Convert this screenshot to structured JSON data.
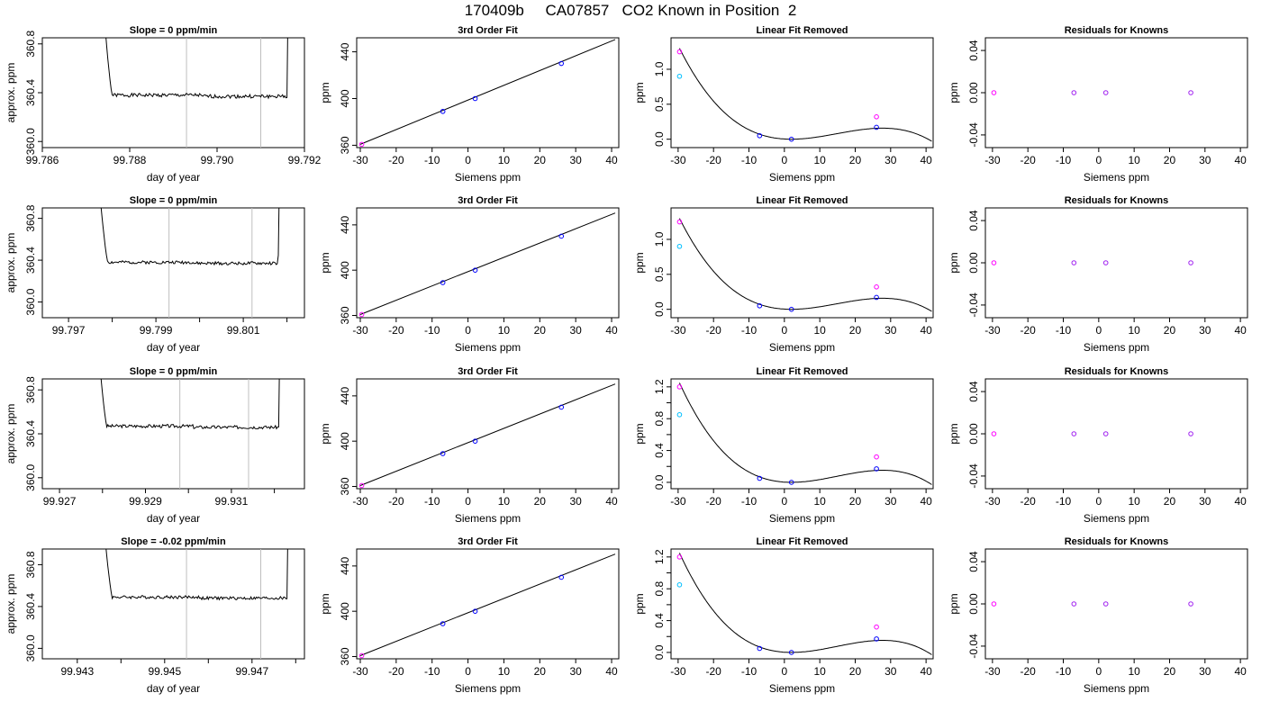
{
  "page_title": "170409b     CA07857   CO2 Known in Position  2",
  "colors": {
    "line": "#000000",
    "gridline": "#bebebe",
    "point_blue": "#0000ff",
    "point_purple": "#a020f0",
    "point_magenta": "#ff00ff",
    "point_cyan": "#00bfff"
  },
  "chart_data": [
    {
      "type": "line",
      "row": 1,
      "title": "Slope =  0  ppm/min",
      "xlabel": "day of year",
      "ylabel": "approx. ppm",
      "xlim": [
        99.786,
        99.792
      ],
      "ylim": [
        359.95,
        360.85
      ],
      "xticks": [
        99.786,
        99.788,
        99.79,
        99.792
      ],
      "xtick_labels": [
        "99.786",
        "99.788",
        "99.790",
        "99.792"
      ],
      "yticks": [
        360.0,
        360.4,
        360.8
      ],
      "ytick_labels": [
        "360.0",
        "360.4",
        "360.8"
      ],
      "vlines": [
        99.7893,
        99.791
      ],
      "trace": {
        "start": 99.7872,
        "end": 99.7917,
        "flat_start": 99.7876,
        "flat_end": 99.7916,
        "flat_level": 360.38,
        "seed": 1
      }
    },
    {
      "type": "scatter",
      "row": 1,
      "title": "3rd Order Fit",
      "xlabel": "Siemens ppm",
      "ylabel": "ppm",
      "xlim": [
        -31,
        42
      ],
      "ylim": [
        358,
        452
      ],
      "xticks": [
        -30,
        -20,
        -10,
        0,
        10,
        20,
        30,
        40
      ],
      "xtick_labels": [
        "-30",
        "-20",
        "-10",
        "0",
        "10",
        "20",
        "30",
        "40"
      ],
      "yticks": [
        360,
        400,
        440
      ],
      "ytick_labels": [
        "360",
        "400",
        "440"
      ],
      "line": {
        "x": [
          -30,
          41
        ],
        "y": [
          360.8,
          450.5
        ]
      },
      "points": [
        {
          "x": -29.6,
          "y": 360.8
        },
        {
          "x": -7,
          "y": 389
        },
        {
          "x": 2,
          "y": 400
        },
        {
          "x": 26,
          "y": 430
        }
      ]
    },
    {
      "type": "scatter",
      "row": 1,
      "title": "Linear Fit Removed",
      "xlabel": "Siemens ppm",
      "ylabel": "ppm",
      "xlim": [
        -32,
        42
      ],
      "ylim": [
        -0.12,
        1.45
      ],
      "xticks": [
        -30,
        -20,
        -10,
        0,
        10,
        20,
        30,
        40
      ],
      "xtick_labels": [
        "-30",
        "-20",
        "-10",
        "0",
        "10",
        "20",
        "30",
        "40"
      ],
      "yticks": [
        0,
        0.5,
        1
      ],
      "ytick_labels": [
        "0.0",
        "0.5",
        "1.0"
      ],
      "curve": {
        "roots": [
          2,
          40.6
        ],
        "peak": {
          "x": -29.6,
          "y": 1.3
        }
      },
      "points": [
        {
          "x": -29.6,
          "y": 0.9
        },
        {
          "x": -29.6,
          "y": 1.25
        },
        {
          "x": -7,
          "y": 0.05
        },
        {
          "x": 2,
          "y": 0.0
        },
        {
          "x": 26,
          "y": 0.32
        },
        {
          "x": 26,
          "y": 0.17
        }
      ]
    },
    {
      "type": "scatter",
      "row": 1,
      "title": "Residuals for Knowns",
      "xlabel": "Siemens ppm",
      "ylabel": "ppm",
      "xlim": [
        -32,
        42
      ],
      "ylim": [
        -0.052,
        0.052
      ],
      "xticks": [
        -30,
        -20,
        -10,
        0,
        10,
        20,
        30,
        40
      ],
      "xtick_labels": [
        "-30",
        "-20",
        "-10",
        "0",
        "10",
        "20",
        "30",
        "40"
      ],
      "yticks": [
        -0.04,
        0,
        0.04
      ],
      "ytick_labels": [
        "-0.04",
        "0.00",
        "0.04"
      ],
      "points": [
        {
          "x": -29.6,
          "y": 0
        },
        {
          "x": -7,
          "y": 0
        },
        {
          "x": 2,
          "y": 0
        },
        {
          "x": 26,
          "y": 0
        }
      ]
    },
    {
      "type": "line",
      "row": 2,
      "title": "Slope =  0  ppm/min",
      "xlabel": "day of year",
      "ylabel": "approx. ppm",
      "xlim": [
        99.7964,
        99.8024
      ],
      "ylim": [
        359.85,
        360.9
      ],
      "xticks": [
        99.797,
        99.798,
        99.799,
        99.8,
        99.801,
        99.802
      ],
      "xtick_labels": [
        "99.797",
        "",
        "99.799",
        "",
        "99.801",
        ""
      ],
      "yticks": [
        360.0,
        360.4,
        360.8
      ],
      "ytick_labels": [
        "360.0",
        "360.4",
        "360.8"
      ],
      "vlines": [
        99.7993,
        99.8012
      ],
      "trace": {
        "start": 99.7975,
        "end": 99.8019,
        "flat_start": 99.7979,
        "flat_end": 99.8018,
        "flat_level": 360.38,
        "seed": 2
      }
    },
    {
      "type": "scatter",
      "row": 2,
      "title": "3rd Order Fit",
      "xlabel": "Siemens ppm",
      "ylabel": "ppm",
      "xlim": [
        -31,
        42
      ],
      "ylim": [
        358,
        455
      ],
      "xticks": [
        -30,
        -20,
        -10,
        0,
        10,
        20,
        30,
        40
      ],
      "xtick_labels": [
        "-30",
        "-20",
        "-10",
        "0",
        "10",
        "20",
        "30",
        "40"
      ],
      "yticks": [
        360,
        400,
        440
      ],
      "ytick_labels": [
        "360",
        "400",
        "440"
      ],
      "line": {
        "x": [
          -30,
          41
        ],
        "y": [
          360.8,
          450.5
        ]
      },
      "points": [
        {
          "x": -29.6,
          "y": 360.8
        },
        {
          "x": -7,
          "y": 389
        },
        {
          "x": 2,
          "y": 400
        },
        {
          "x": 26,
          "y": 430
        }
      ]
    },
    {
      "type": "scatter",
      "row": 2,
      "title": "Linear Fit Removed",
      "xlabel": "Siemens ppm",
      "ylabel": "ppm",
      "xlim": [
        -32,
        42
      ],
      "ylim": [
        -0.12,
        1.45
      ],
      "xticks": [
        -30,
        -20,
        -10,
        0,
        10,
        20,
        30,
        40
      ],
      "xtick_labels": [
        "-30",
        "-20",
        "-10",
        "0",
        "10",
        "20",
        "30",
        "40"
      ],
      "yticks": [
        0,
        0.5,
        1
      ],
      "ytick_labels": [
        "0.0",
        "0.5",
        "1.0"
      ],
      "curve": {
        "roots": [
          2,
          40.6
        ],
        "peak": {
          "x": -29.6,
          "y": 1.3
        }
      },
      "points": [
        {
          "x": -29.6,
          "y": 0.9
        },
        {
          "x": -29.6,
          "y": 1.25
        },
        {
          "x": -7,
          "y": 0.05
        },
        {
          "x": 2,
          "y": 0.0
        },
        {
          "x": 26,
          "y": 0.32
        },
        {
          "x": 26,
          "y": 0.17
        }
      ]
    },
    {
      "type": "scatter",
      "row": 2,
      "title": "Residuals for Knowns",
      "xlabel": "Siemens ppm",
      "ylabel": "ppm",
      "xlim": [
        -32,
        42
      ],
      "ylim": [
        -0.052,
        0.052
      ],
      "xticks": [
        -30,
        -20,
        -10,
        0,
        10,
        20,
        30,
        40
      ],
      "xtick_labels": [
        "-30",
        "-20",
        "-10",
        "0",
        "10",
        "20",
        "30",
        "40"
      ],
      "yticks": [
        -0.04,
        0,
        0.04
      ],
      "ytick_labels": [
        "-0.04",
        "0.00",
        "0.04"
      ],
      "points": [
        {
          "x": -29.6,
          "y": 0
        },
        {
          "x": -7,
          "y": 0
        },
        {
          "x": 2,
          "y": 0
        },
        {
          "x": 26,
          "y": 0
        }
      ]
    },
    {
      "type": "line",
      "row": 3,
      "title": "Slope =  0  ppm/min",
      "xlabel": "day of year",
      "ylabel": "approx. ppm",
      "xlim": [
        99.9266,
        99.9327
      ],
      "ylim": [
        359.9,
        360.9
      ],
      "xticks": [
        99.927,
        99.928,
        99.929,
        99.93,
        99.931,
        99.932
      ],
      "xtick_labels": [
        "99.927",
        "",
        "99.929",
        "",
        "99.931",
        ""
      ],
      "yticks": [
        360.0,
        360.4,
        360.8
      ],
      "ytick_labels": [
        "360.0",
        "360.4",
        "360.8"
      ],
      "vlines": [
        99.9298,
        99.9314
      ],
      "trace": {
        "start": 99.9277,
        "end": 99.9322,
        "flat_start": 99.9281,
        "flat_end": 99.9321,
        "flat_level": 360.47,
        "seed": 3
      }
    },
    {
      "type": "scatter",
      "row": 3,
      "title": "3rd Order Fit",
      "xlabel": "Siemens ppm",
      "ylabel": "ppm",
      "xlim": [
        -31,
        42
      ],
      "ylim": [
        358,
        455
      ],
      "xticks": [
        -30,
        -20,
        -10,
        0,
        10,
        20,
        30,
        40
      ],
      "xtick_labels": [
        "-30",
        "-20",
        "-10",
        "0",
        "10",
        "20",
        "30",
        "40"
      ],
      "yticks": [
        360,
        400,
        440
      ],
      "ytick_labels": [
        "360",
        "400",
        "440"
      ],
      "line": {
        "x": [
          -30,
          41
        ],
        "y": [
          360.8,
          450.5
        ]
      },
      "points": [
        {
          "x": -29.6,
          "y": 360.8
        },
        {
          "x": -7,
          "y": 389
        },
        {
          "x": 2,
          "y": 400
        },
        {
          "x": 26,
          "y": 430
        }
      ]
    },
    {
      "type": "scatter",
      "row": 3,
      "title": "Linear Fit Removed",
      "xlabel": "Siemens ppm",
      "ylabel": "ppm",
      "xlim": [
        -32,
        42
      ],
      "ylim": [
        -0.08,
        1.3
      ],
      "xticks": [
        -30,
        -20,
        -10,
        0,
        10,
        20,
        30,
        40
      ],
      "xtick_labels": [
        "-30",
        "-20",
        "-10",
        "0",
        "10",
        "20",
        "30",
        "40"
      ],
      "yticks": [
        0,
        0.2,
        0.4,
        0.6,
        0.8,
        1,
        1.2
      ],
      "ytick_labels": [
        "0.0",
        "",
        "0.4",
        "",
        "0.8",
        "",
        "1.2"
      ],
      "curve": {
        "roots": [
          2,
          40.6
        ],
        "peak": {
          "x": -29.6,
          "y": 1.25
        }
      },
      "points": [
        {
          "x": -29.6,
          "y": 0.85
        },
        {
          "x": -29.6,
          "y": 1.2
        },
        {
          "x": -7,
          "y": 0.05
        },
        {
          "x": 2,
          "y": 0.0
        },
        {
          "x": 26,
          "y": 0.32
        },
        {
          "x": 26,
          "y": 0.17
        }
      ]
    },
    {
      "type": "scatter",
      "row": 3,
      "title": "Residuals for Knowns",
      "xlabel": "Siemens ppm",
      "ylabel": "ppm",
      "xlim": [
        -32,
        42
      ],
      "ylim": [
        -0.052,
        0.052
      ],
      "xticks": [
        -30,
        -20,
        -10,
        0,
        10,
        20,
        30,
        40
      ],
      "xtick_labels": [
        "-30",
        "-20",
        "-10",
        "0",
        "10",
        "20",
        "30",
        "40"
      ],
      "yticks": [
        -0.04,
        0,
        0.04
      ],
      "ytick_labels": [
        "-0.04",
        "0.00",
        "0.04"
      ],
      "points": [
        {
          "x": -29.6,
          "y": 0
        },
        {
          "x": -7,
          "y": 0
        },
        {
          "x": 2,
          "y": 0
        },
        {
          "x": 26,
          "y": 0
        }
      ]
    },
    {
      "type": "line",
      "row": 4,
      "title": "Slope =  -0.02  ppm/min",
      "xlabel": "day of year",
      "ylabel": "approx. ppm",
      "xlim": [
        99.9422,
        99.9482
      ],
      "ylim": [
        359.9,
        360.95
      ],
      "xticks": [
        99.943,
        99.944,
        99.945,
        99.946,
        99.947,
        99.948
      ],
      "xtick_labels": [
        "99.943",
        "",
        "99.945",
        "",
        "99.947",
        ""
      ],
      "yticks": [
        360.0,
        360.4,
        360.8
      ],
      "ytick_labels": [
        "360.0",
        "360.4",
        "360.8"
      ],
      "vlines": [
        99.9455,
        99.9472
      ],
      "trace": {
        "start": 99.9434,
        "end": 99.9479,
        "flat_start": 99.9438,
        "flat_end": 99.9478,
        "flat_level": 360.49,
        "seed": 4
      }
    },
    {
      "type": "scatter",
      "row": 4,
      "title": "3rd Order Fit",
      "xlabel": "Siemens ppm",
      "ylabel": "ppm",
      "xlim": [
        -31,
        42
      ],
      "ylim": [
        358,
        455
      ],
      "xticks": [
        -30,
        -20,
        -10,
        0,
        10,
        20,
        30,
        40
      ],
      "xtick_labels": [
        "-30",
        "-20",
        "-10",
        "0",
        "10",
        "20",
        "30",
        "40"
      ],
      "yticks": [
        360,
        400,
        440
      ],
      "ytick_labels": [
        "360",
        "400",
        "440"
      ],
      "line": {
        "x": [
          -30,
          41
        ],
        "y": [
          360.8,
          450.5
        ]
      },
      "points": [
        {
          "x": -29.6,
          "y": 360.8
        },
        {
          "x": -7,
          "y": 389
        },
        {
          "x": 2,
          "y": 400
        },
        {
          "x": 26,
          "y": 430
        }
      ]
    },
    {
      "type": "scatter",
      "row": 4,
      "title": "Linear Fit Removed",
      "xlabel": "Siemens ppm",
      "ylabel": "ppm",
      "xlim": [
        -32,
        42
      ],
      "ylim": [
        -0.08,
        1.3
      ],
      "xticks": [
        -30,
        -20,
        -10,
        0,
        10,
        20,
        30,
        40
      ],
      "xtick_labels": [
        "-30",
        "-20",
        "-10",
        "0",
        "10",
        "20",
        "30",
        "40"
      ],
      "yticks": [
        0,
        0.2,
        0.4,
        0.6,
        0.8,
        1,
        1.2
      ],
      "ytick_labels": [
        "0.0",
        "",
        "0.4",
        "",
        "0.8",
        "",
        "1.2"
      ],
      "curve": {
        "roots": [
          2,
          40.6
        ],
        "peak": {
          "x": -29.6,
          "y": 1.25
        }
      },
      "points": [
        {
          "x": -29.6,
          "y": 0.85
        },
        {
          "x": -29.6,
          "y": 1.2
        },
        {
          "x": -7,
          "y": 0.05
        },
        {
          "x": 2,
          "y": 0.0
        },
        {
          "x": 26,
          "y": 0.32
        },
        {
          "x": 26,
          "y": 0.17
        }
      ]
    },
    {
      "type": "scatter",
      "row": 4,
      "title": "Residuals for Knowns",
      "xlabel": "Siemens ppm",
      "ylabel": "ppm",
      "xlim": [
        -32,
        42
      ],
      "ylim": [
        -0.052,
        0.052
      ],
      "xticks": [
        -30,
        -20,
        -10,
        0,
        10,
        20,
        30,
        40
      ],
      "xtick_labels": [
        "-30",
        "-20",
        "-10",
        "0",
        "10",
        "20",
        "30",
        "40"
      ],
      "yticks": [
        -0.04,
        0,
        0.04
      ],
      "ytick_labels": [
        "-0.04",
        "0.00",
        "0.04"
      ],
      "points": [
        {
          "x": -29.6,
          "y": 0
        },
        {
          "x": -7,
          "y": 0
        },
        {
          "x": 2,
          "y": 0
        },
        {
          "x": 26,
          "y": 0
        }
      ]
    }
  ]
}
